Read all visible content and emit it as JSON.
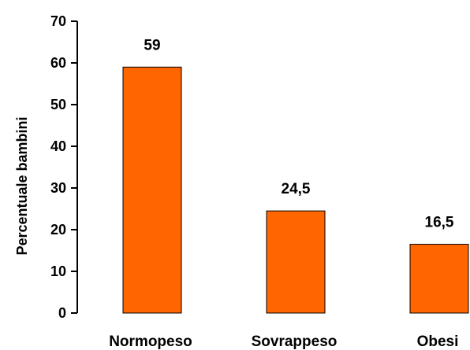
{
  "chart_data": {
    "type": "bar",
    "title": "",
    "xlabel": "",
    "ylabel": "Percentuale bambini",
    "categories": [
      "Normopeso",
      "Sovrappeso",
      "Obesi"
    ],
    "values": [
      59,
      24.5,
      16.5
    ],
    "data_labels": [
      "59",
      "24,5",
      "16,5"
    ],
    "yticks": [
      0,
      10,
      20,
      30,
      40,
      50,
      60,
      70
    ],
    "ylim": [
      0,
      70
    ],
    "grid": false,
    "legend": "none",
    "bar_color": "#FF6600",
    "bar_edge_color": "#000000"
  }
}
